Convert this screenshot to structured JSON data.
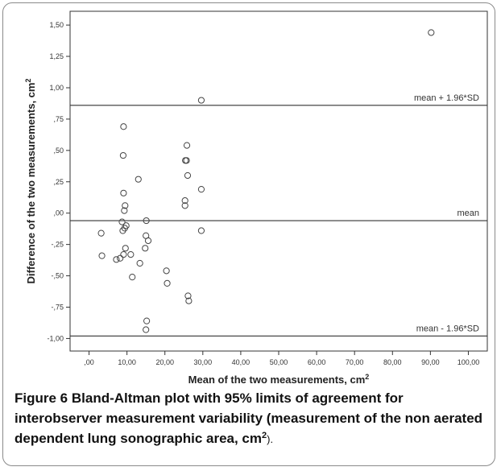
{
  "chart_data": {
    "type": "scatter",
    "xlabel": "Mean of the two measurements, cm",
    "xlabel_superscript": "2",
    "ylabel": "Difference of the two measurements, cm",
    "ylabel_superscript": "2",
    "xlim": [
      -5,
      105
    ],
    "ylim": [
      -1.1,
      1.61
    ],
    "xticks": [
      {
        "value": 0,
        "label": ",00"
      },
      {
        "value": 10,
        "label": "10,00"
      },
      {
        "value": 20,
        "label": "20,00"
      },
      {
        "value": 30,
        "label": "30,00"
      },
      {
        "value": 40,
        "label": "40,00"
      },
      {
        "value": 50,
        "label": "50,00"
      },
      {
        "value": 60,
        "label": "60,00"
      },
      {
        "value": 70,
        "label": "70,00"
      },
      {
        "value": 80,
        "label": "80,00"
      },
      {
        "value": 90,
        "label": "90,00"
      },
      {
        "value": 100,
        "label": "100,00"
      }
    ],
    "yticks": [
      {
        "value": 1.5,
        "label": "1,50"
      },
      {
        "value": 1.25,
        "label": "1,25"
      },
      {
        "value": 1.0,
        "label": "1,00"
      },
      {
        "value": 0.75,
        "label": ",75"
      },
      {
        "value": 0.5,
        "label": ",50"
      },
      {
        "value": 0.25,
        "label": ",25"
      },
      {
        "value": 0.0,
        "label": ",00"
      },
      {
        "value": -0.25,
        "label": "-,25"
      },
      {
        "value": -0.5,
        "label": "-,50"
      },
      {
        "value": -0.75,
        "label": "-,75"
      },
      {
        "value": -1.0,
        "label": "-1,00"
      }
    ],
    "reference_lines": [
      {
        "id": "upper",
        "y": 0.86,
        "label": "mean + 1.96*SD"
      },
      {
        "id": "mean",
        "y": -0.06,
        "label": "mean"
      },
      {
        "id": "lower",
        "y": -0.98,
        "label": "mean - 1.96*SD"
      }
    ],
    "points": [
      {
        "x": 90.2,
        "y": 1.44
      },
      {
        "x": 29.6,
        "y": 0.9
      },
      {
        "x": 9.1,
        "y": 0.69
      },
      {
        "x": 25.8,
        "y": 0.54
      },
      {
        "x": 9.0,
        "y": 0.46
      },
      {
        "x": 25.4,
        "y": 0.42
      },
      {
        "x": 25.7,
        "y": 0.42
      },
      {
        "x": 26.0,
        "y": 0.3
      },
      {
        "x": 13.0,
        "y": 0.27
      },
      {
        "x": 29.6,
        "y": 0.19
      },
      {
        "x": 9.1,
        "y": 0.16
      },
      {
        "x": 25.3,
        "y": 0.1
      },
      {
        "x": 25.3,
        "y": 0.06
      },
      {
        "x": 9.5,
        "y": 0.06
      },
      {
        "x": 9.3,
        "y": 0.02
      },
      {
        "x": 15.1,
        "y": -0.06
      },
      {
        "x": 8.7,
        "y": -0.07
      },
      {
        "x": 9.8,
        "y": -0.1
      },
      {
        "x": 9.4,
        "y": -0.12
      },
      {
        "x": 8.9,
        "y": -0.14
      },
      {
        "x": 29.6,
        "y": -0.14
      },
      {
        "x": 3.2,
        "y": -0.16
      },
      {
        "x": 15.0,
        "y": -0.18
      },
      {
        "x": 15.6,
        "y": -0.22
      },
      {
        "x": 14.8,
        "y": -0.28
      },
      {
        "x": 9.6,
        "y": -0.28
      },
      {
        "x": 3.4,
        "y": -0.34
      },
      {
        "x": 9.1,
        "y": -0.33
      },
      {
        "x": 11.0,
        "y": -0.33
      },
      {
        "x": 8.2,
        "y": -0.36
      },
      {
        "x": 7.2,
        "y": -0.37
      },
      {
        "x": 13.4,
        "y": -0.4
      },
      {
        "x": 20.4,
        "y": -0.46
      },
      {
        "x": 11.4,
        "y": -0.51
      },
      {
        "x": 20.6,
        "y": -0.56
      },
      {
        "x": 26.1,
        "y": -0.66
      },
      {
        "x": 26.3,
        "y": -0.7
      },
      {
        "x": 15.2,
        "y": -0.86
      },
      {
        "x": 15.0,
        "y": -0.93
      }
    ]
  },
  "caption": {
    "figure_label": "Figure 6",
    "text": "Bland-Altman plot with 95% limits of agreement for interobserver measurement variability (measurement of the non aerated dependent lung sonographic area, cm",
    "text_superscript": "2",
    "tail": ")."
  }
}
